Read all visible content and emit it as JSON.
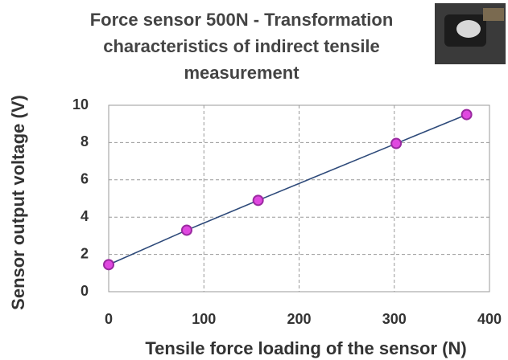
{
  "chart_data": {
    "type": "line",
    "title": "Force sensor 500N - Transformation characteristics of indirect tensile measurement",
    "x_label": "Tensile force loading of the sensor (N)",
    "y_label": "Sensor output voltage (V)",
    "x": [
      0,
      82,
      157,
      302,
      376
    ],
    "series": [
      {
        "name": "Output voltage",
        "color": "#2e4a7a",
        "marker_color": "#e048e0",
        "values": [
          1.45,
          3.3,
          4.9,
          7.95,
          9.5
        ]
      }
    ],
    "xlim": [
      0,
      400
    ],
    "xticks": [
      0,
      100,
      200,
      300,
      400
    ],
    "ylim": [
      0,
      10
    ],
    "yticks": [
      0,
      2,
      4,
      6,
      8,
      10
    ],
    "grid": true
  }
}
